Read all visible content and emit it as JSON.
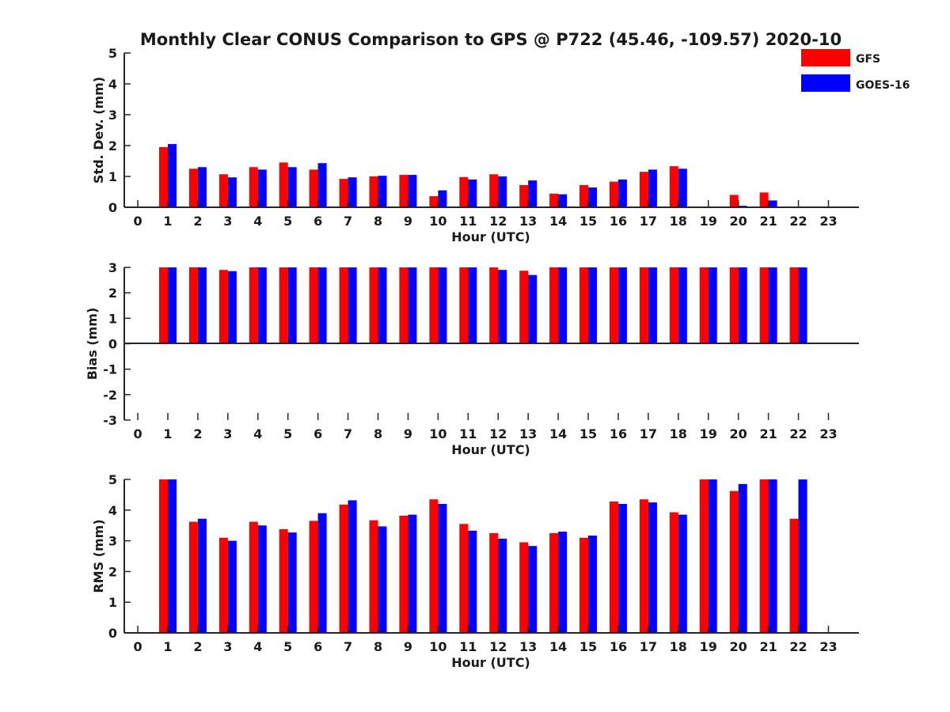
{
  "title": "Monthly Clear CONUS Comparison to GPS @ P722 (45.46, -109.57) 2020-10",
  "colors": {
    "GFS": "#ff0000",
    "GOES-16": "#0000ff"
  },
  "legend": {
    "entries": [
      "GFS",
      "GOES-16"
    ],
    "placement": "top-right"
  },
  "chart_data": [
    {
      "type": "bar",
      "xlabel": "Hour (UTC)",
      "ylabel": "Std. Dev. (mm)",
      "ylim": [
        0,
        5
      ],
      "yticks": [
        "0",
        "1",
        "2",
        "3",
        "4",
        "5"
      ],
      "categories": [
        "0",
        "1",
        "2",
        "3",
        "4",
        "5",
        "6",
        "7",
        "8",
        "9",
        "10",
        "11",
        "12",
        "13",
        "14",
        "15",
        "16",
        "17",
        "18",
        "19",
        "20",
        "21",
        "22",
        "23"
      ],
      "series": [
        {
          "name": "GFS",
          "values": [
            null,
            1.95,
            1.25,
            1.07,
            1.3,
            1.45,
            1.22,
            0.92,
            1.0,
            1.05,
            0.36,
            0.98,
            1.07,
            0.72,
            0.44,
            0.72,
            0.83,
            1.15,
            1.33,
            null,
            0.4,
            0.48,
            null,
            null
          ]
        },
        {
          "name": "GOES-16",
          "values": [
            null,
            2.05,
            1.3,
            0.97,
            1.22,
            1.3,
            1.43,
            0.97,
            1.02,
            1.05,
            0.55,
            0.9,
            1.0,
            0.87,
            0.42,
            0.64,
            0.9,
            1.22,
            1.25,
            null,
            0.05,
            0.22,
            null,
            null
          ]
        }
      ]
    },
    {
      "type": "bar",
      "xlabel": "Hour (UTC)",
      "ylabel": "Bias (mm)",
      "ylim": [
        -3,
        3
      ],
      "yticks": [
        "-3",
        "-2",
        "-1",
        "0",
        "1",
        "2",
        "3"
      ],
      "categories": [
        "0",
        "1",
        "2",
        "3",
        "4",
        "5",
        "6",
        "7",
        "8",
        "9",
        "10",
        "11",
        "12",
        "13",
        "14",
        "15",
        "16",
        "17",
        "18",
        "19",
        "20",
        "21",
        "22",
        "23"
      ],
      "series": [
        {
          "name": "GFS",
          "values": [
            null,
            3,
            3,
            2.9,
            3,
            3,
            3,
            3,
            3,
            3,
            3,
            3,
            3,
            2.87,
            3,
            3,
            3,
            3,
            3,
            3,
            3,
            3,
            3,
            null
          ]
        },
        {
          "name": "GOES-16",
          "values": [
            null,
            3,
            3,
            2.85,
            3,
            3,
            3,
            3,
            3,
            3,
            3,
            3,
            2.9,
            2.7,
            3,
            3,
            3,
            3,
            3,
            3,
            3,
            3,
            3,
            null
          ]
        }
      ]
    },
    {
      "type": "bar",
      "xlabel": "Hour (UTC)",
      "ylabel": "RMS (mm)",
      "ylim": [
        0,
        5
      ],
      "yticks": [
        "0",
        "1",
        "2",
        "3",
        "4",
        "5"
      ],
      "categories": [
        "0",
        "1",
        "2",
        "3",
        "4",
        "5",
        "6",
        "7",
        "8",
        "9",
        "10",
        "11",
        "12",
        "13",
        "14",
        "15",
        "16",
        "17",
        "18",
        "19",
        "20",
        "21",
        "22",
        "23"
      ],
      "series": [
        {
          "name": "GFS",
          "values": [
            null,
            5,
            3.62,
            3.1,
            3.62,
            3.38,
            3.65,
            4.18,
            3.67,
            3.82,
            4.35,
            3.55,
            3.25,
            2.95,
            3.25,
            3.1,
            4.28,
            4.35,
            3.93,
            5,
            4.62,
            5,
            3.72,
            null
          ]
        },
        {
          "name": "GOES-16",
          "values": [
            null,
            5,
            3.72,
            3.0,
            3.5,
            3.27,
            3.9,
            4.32,
            3.47,
            3.85,
            4.2,
            3.33,
            3.07,
            2.83,
            3.3,
            3.17,
            4.2,
            4.25,
            3.85,
            5,
            4.85,
            5,
            5,
            null
          ]
        }
      ]
    }
  ]
}
